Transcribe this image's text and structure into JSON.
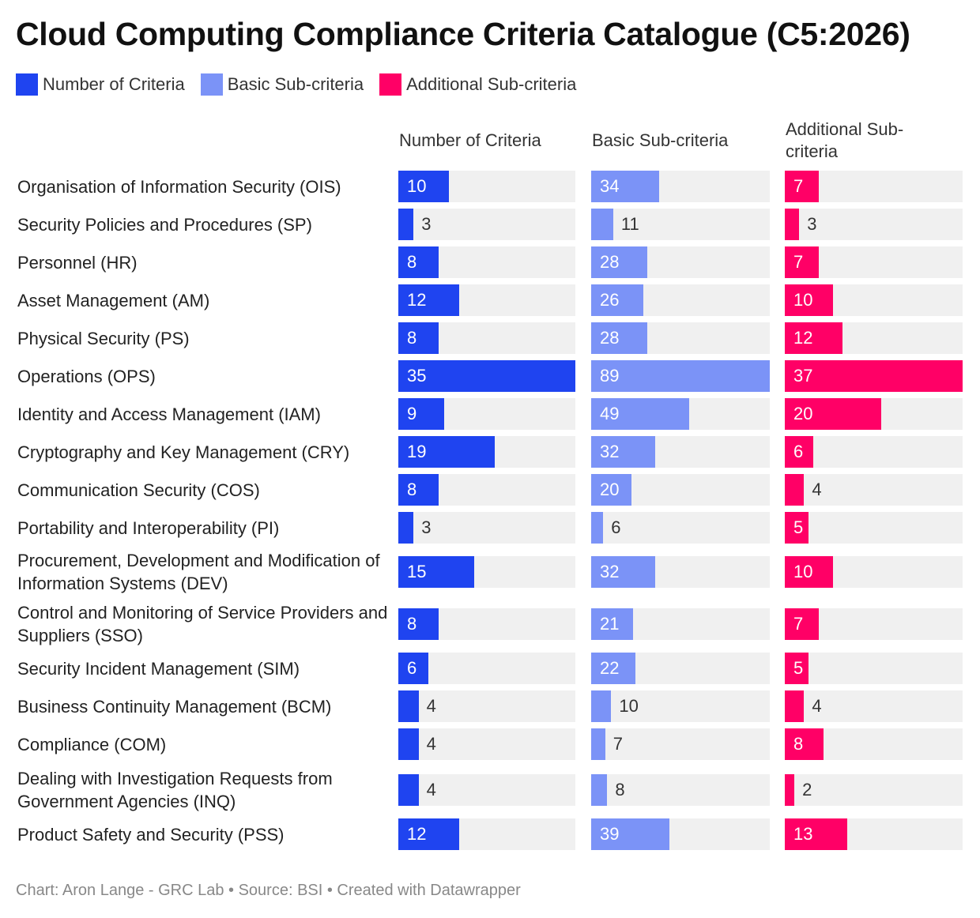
{
  "chart_data": {
    "type": "bar",
    "title": "Cloud Computing Compliance Criteria Catalogue (C5:2026)",
    "footer": "Chart: Aron Lange - GRC Lab • Source: BSI • Created with Datawrapper",
    "series": [
      {
        "key": "criteria",
        "name": "Number of Criteria",
        "header": "Number of Criteria",
        "color": "#1f44f0",
        "values": [
          10,
          3,
          8,
          12,
          8,
          35,
          9,
          19,
          8,
          3,
          15,
          8,
          6,
          4,
          4,
          4,
          12
        ]
      },
      {
        "key": "basic",
        "name": "Basic Sub-criteria",
        "header": "Basic Sub-criteria",
        "color": "#7b93f7",
        "values": [
          34,
          11,
          28,
          26,
          28,
          89,
          49,
          32,
          20,
          6,
          32,
          21,
          22,
          10,
          7,
          8,
          39
        ]
      },
      {
        "key": "additional",
        "name": "Additional Sub-criteria",
        "header": "Additional Sub-criteria",
        "color": "#ff0066",
        "values": [
          7,
          3,
          7,
          10,
          12,
          37,
          20,
          6,
          4,
          5,
          10,
          7,
          5,
          4,
          8,
          2,
          13
        ]
      }
    ],
    "categories": [
      "Organisation of Information Security (OIS)",
      "Security Policies and Procedures (SP)",
      "Personnel (HR)",
      "Asset Management (AM)",
      "Physical Security (PS)",
      "Operations (OPS)",
      "Identity and Access Management (IAM)",
      "Cryptography and Key Management (CRY)",
      "Communication Security (COS)",
      "Portability and Interoperability (PI)",
      "Procurement, Development and Modification of Information Systems (DEV)",
      "Control and Monitoring of Service Providers and Suppliers (SSO)",
      "Security Incident Management (SIM)",
      "Business Continuity Management (BCM)",
      "Compliance (COM)",
      "Dealing with Investigation Requests from Government Agencies (INQ)",
      "Product Safety and Security (PSS)"
    ]
  }
}
